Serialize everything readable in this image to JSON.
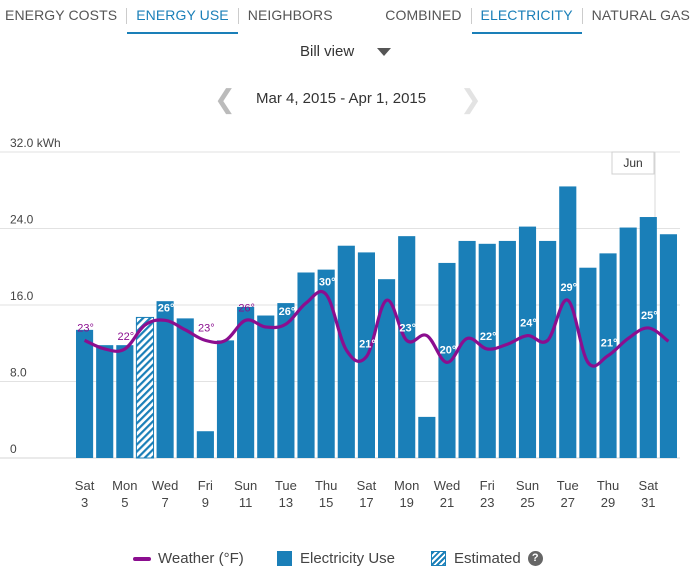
{
  "tabs_left": [
    {
      "label": "ENERGY COSTS",
      "active": false
    },
    {
      "label": "ENERGY USE",
      "active": true
    },
    {
      "label": "NEIGHBORS",
      "active": false
    }
  ],
  "tabs_right": [
    {
      "label": "COMBINED",
      "active": false
    },
    {
      "label": "ELECTRICITY",
      "active": true
    },
    {
      "label": "NATURAL GAS",
      "active": false
    }
  ],
  "view": {
    "label": "Bill view"
  },
  "date_range": "Mar 4, 2015 - Apr 1, 2015",
  "legend": {
    "weather": "Weather (°F)",
    "usage": "Electricity Use",
    "estimated": "Estimated",
    "help": "?"
  },
  "colors": {
    "bar": "#1a7fb8",
    "weather": "#8b0e8f",
    "grid": "#e2e2e2",
    "axis_text": "#444444"
  },
  "chart_data": {
    "type": "bar",
    "title": "",
    "ylabel": "kWh",
    "ylim": [
      0,
      32
    ],
    "yticks": [
      {
        "value": 0,
        "label": "0"
      },
      {
        "value": 8,
        "label": "8.0"
      },
      {
        "value": 16,
        "label": "16.0"
      },
      {
        "value": 24,
        "label": "24.0"
      },
      {
        "value": 32,
        "label": "32.0 kWh"
      }
    ],
    "categories": [
      "Mar 3",
      "Mar 4",
      "Mar 5",
      "Mar 6",
      "Mar 7",
      "Mar 8",
      "Mar 9",
      "Mar 10",
      "Mar 11",
      "Mar 12",
      "Mar 13",
      "Mar 14",
      "Mar 15",
      "Mar 16",
      "Mar 17",
      "Mar 18",
      "Mar 19",
      "Mar 20",
      "Mar 21",
      "Mar 22",
      "Mar 23",
      "Mar 24",
      "Mar 25",
      "Mar 26",
      "Mar 27",
      "Mar 28",
      "Mar 29",
      "Mar 30",
      "Mar 31",
      "Apr 1"
    ],
    "values": [
      13.4,
      11.8,
      11.8,
      14.7,
      16.4,
      14.6,
      2.8,
      12.3,
      15.8,
      14.9,
      16.2,
      19.4,
      19.7,
      22.2,
      21.5,
      18.7,
      23.2,
      4.3,
      20.4,
      22.7,
      22.4,
      22.7,
      24.2,
      22.7,
      28.4,
      19.9,
      21.4,
      24.1,
      25.2,
      23.4
    ],
    "estimated": [
      false,
      false,
      false,
      true,
      false,
      false,
      false,
      false,
      false,
      false,
      false,
      false,
      false,
      false,
      false,
      false,
      false,
      false,
      false,
      false,
      false,
      false,
      false,
      false,
      false,
      false,
      false,
      false,
      false,
      false
    ],
    "x_tick_labels": [
      {
        "day": "Sat",
        "date": "3"
      },
      {
        "day": "Mon",
        "date": "5"
      },
      {
        "day": "Wed",
        "date": "7"
      },
      {
        "day": "Fri",
        "date": "9"
      },
      {
        "day": "Sun",
        "date": "11"
      },
      {
        "day": "Tue",
        "date": "13"
      },
      {
        "day": "Thu",
        "date": "15"
      },
      {
        "day": "Sat",
        "date": "17"
      },
      {
        "day": "Mon",
        "date": "19"
      },
      {
        "day": "Wed",
        "date": "21"
      },
      {
        "day": "Fri",
        "date": "23"
      },
      {
        "day": "Sun",
        "date": "25"
      },
      {
        "day": "Tue",
        "date": "27"
      },
      {
        "day": "Thu",
        "date": "29"
      },
      {
        "day": "Sat",
        "date": "31"
      }
    ],
    "month_marker": "Jun",
    "weather_series": {
      "name": "Weather (°F)",
      "values": [
        12.3,
        11.4,
        11.4,
        13.9,
        14.4,
        13.4,
        12.3,
        12.3,
        14.4,
        13.7,
        14.0,
        16.2,
        17.1,
        11.3,
        10.6,
        16.5,
        12.3,
        12.8,
        10.0,
        12.5,
        11.4,
        11.9,
        12.8,
        12.3,
        16.5,
        10.0,
        10.7,
        12.5,
        13.6,
        12.2
      ],
      "labels": [
        {
          "index": 0,
          "text": "23°"
        },
        {
          "index": 2,
          "text": "22°"
        },
        {
          "index": 4,
          "text": "26°"
        },
        {
          "index": 6,
          "text": "23°"
        },
        {
          "index": 8,
          "text": "26°"
        },
        {
          "index": 10,
          "text": "26°"
        },
        {
          "index": 12,
          "text": "30°"
        },
        {
          "index": 14,
          "text": "21°"
        },
        {
          "index": 16,
          "text": "23°"
        },
        {
          "index": 18,
          "text": "20°"
        },
        {
          "index": 20,
          "text": "22°"
        },
        {
          "index": 22,
          "text": "24°"
        },
        {
          "index": 24,
          "text": "29°"
        },
        {
          "index": 26,
          "text": "21°"
        },
        {
          "index": 28,
          "text": "25°"
        }
      ]
    }
  }
}
